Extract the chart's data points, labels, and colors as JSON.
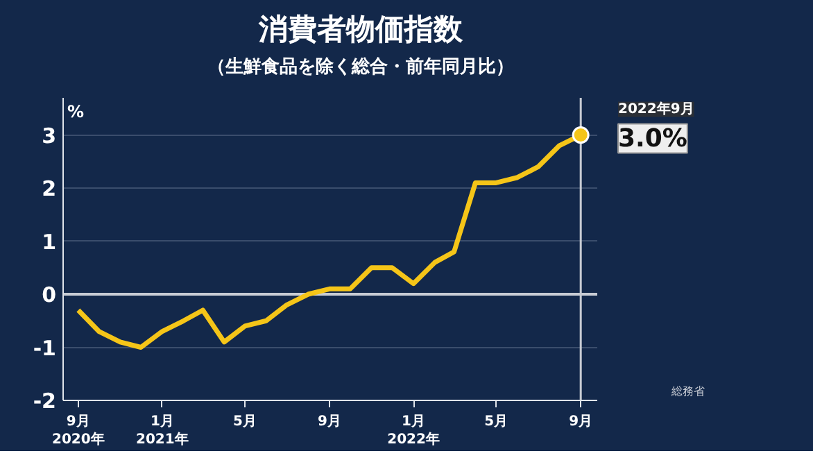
{
  "chart_data": {
    "type": "line",
    "title": "消費者物価指数",
    "subtitle": "（生鮮食品を除く総合・前年同月比）",
    "ylabel": "%",
    "x": [
      "2020-09",
      "2020-10",
      "2020-11",
      "2020-12",
      "2021-01",
      "2021-02",
      "2021-03",
      "2021-04",
      "2021-05",
      "2021-06",
      "2021-07",
      "2021-08",
      "2021-09",
      "2021-10",
      "2021-11",
      "2021-12",
      "2022-01",
      "2022-02",
      "2022-03",
      "2022-04",
      "2022-05",
      "2022-06",
      "2022-07",
      "2022-08",
      "2022-09"
    ],
    "series": [
      {
        "color": "#f5c518",
        "values": [
          -0.3,
          -0.7,
          -0.9,
          -1.0,
          -0.7,
          -0.5,
          -0.3,
          -0.9,
          -0.6,
          -0.5,
          -0.2,
          0.0,
          0.1,
          0.1,
          0.5,
          0.5,
          0.2,
          0.6,
          0.8,
          2.1,
          2.1,
          2.2,
          2.4,
          2.8,
          3.0
        ],
        "value_labels": [
          null,
          null,
          null,
          null,
          null,
          null,
          null,
          null,
          null,
          null,
          null,
          null,
          null,
          null,
          null,
          null,
          null,
          null,
          null,
          null,
          null,
          null,
          null,
          null,
          "3.0%"
        ]
      }
    ],
    "xlim": [
      "2020-08-10",
      "2022-09-25"
    ],
    "ylim": [
      -2,
      3.7
    ],
    "xticks": [
      {
        "value": "2020-09",
        "label": "9月\n2020年"
      },
      {
        "value": "2021-01",
        "label": "1月\n2021年"
      },
      {
        "value": "2021-05",
        "label": "5月"
      },
      {
        "value": "2021-09",
        "label": "9月"
      },
      {
        "value": "2022-01",
        "label": "1月\n2022年"
      },
      {
        "value": "2022-05",
        "label": "5月"
      },
      {
        "value": "2022-09",
        "label": "9月"
      }
    ],
    "yticks": [
      -2,
      -1,
      0,
      1,
      2,
      3
    ],
    "grid": "y",
    "line_style": "solid",
    "ref_lines": [
      {
        "axis": "y",
        "value": 0,
        "color": "#c8ccd4"
      },
      {
        "axis": "x",
        "value": "2022-09",
        "color": "#c8ccd4"
      }
    ],
    "annotations": [
      "2022年9月",
      "総務省"
    ]
  }
}
